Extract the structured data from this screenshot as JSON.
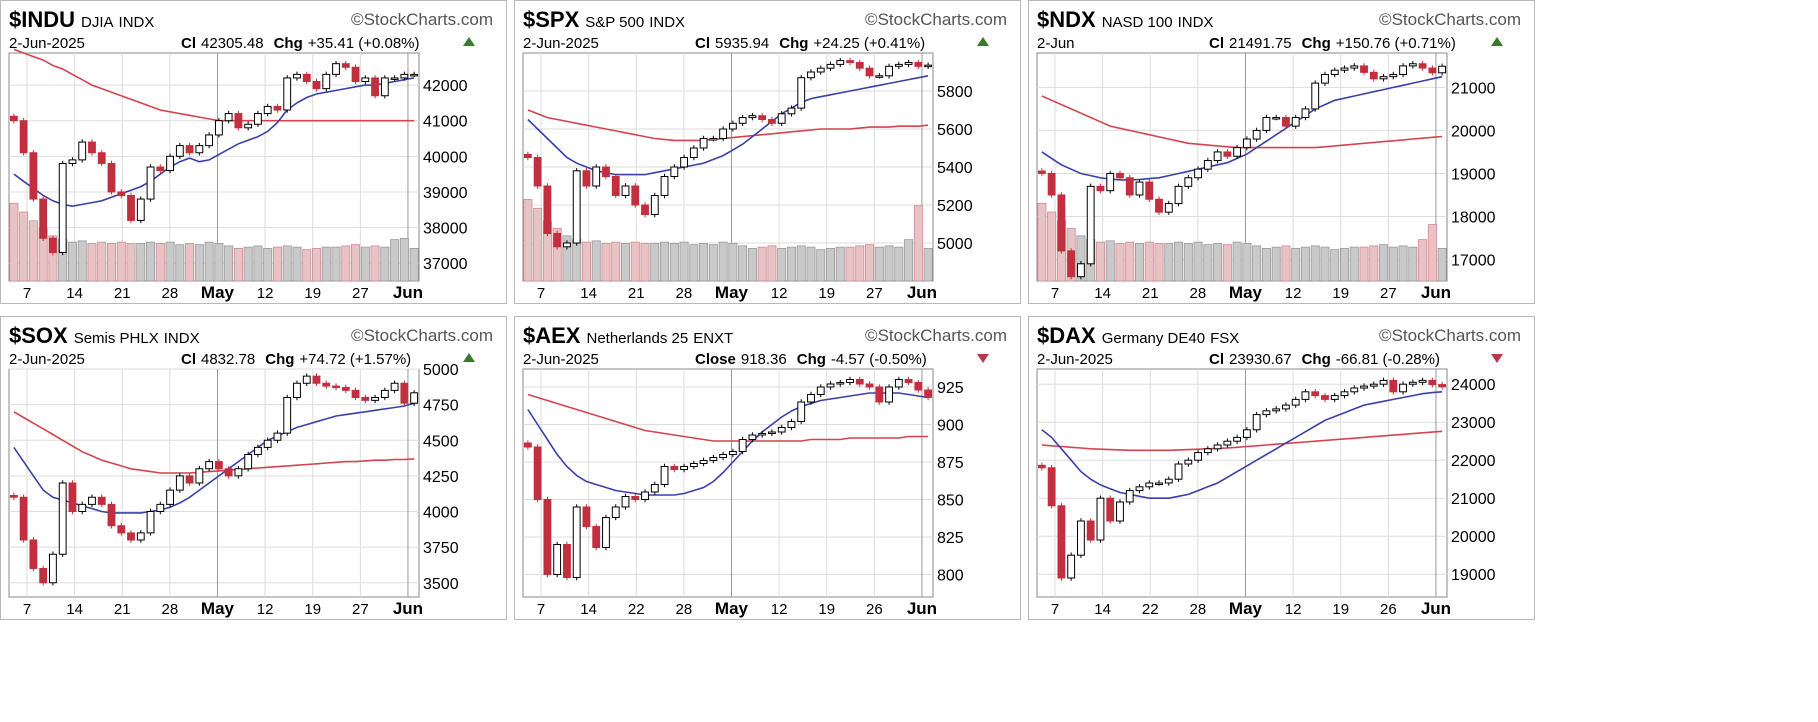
{
  "chart_data": [
    {
      "type": "candlestick",
      "symbol": "$INDU",
      "name": "DJIA",
      "exchange": "INDX",
      "brand": "StockCharts.com",
      "date": "2-Jun-2025",
      "close_label": "Cl",
      "close": "42305.48",
      "chg_label": "Chg",
      "chg": "+35.41 (+0.08%)",
      "direction": "up",
      "y_ticks": [
        "42000",
        "41000",
        "40000",
        "39000",
        "38000",
        "37000"
      ],
      "ylim": [
        36500,
        42900
      ],
      "x_labels": [
        "7",
        "14",
        "21",
        "28",
        "May",
        "12",
        "19",
        "27",
        "Jun"
      ],
      "closes": [
        41000,
        40100,
        38800,
        37700,
        37300,
        39800,
        39900,
        40400,
        40100,
        39800,
        39000,
        38900,
        38200,
        38800,
        39700,
        39600,
        40000,
        40300,
        40100,
        40300,
        40600,
        41000,
        41200,
        40800,
        40900,
        41200,
        41400,
        41300,
        42200,
        42300,
        42100,
        41900,
        42300,
        42600,
        42500,
        42100,
        42200,
        41700,
        42200,
        42200,
        42300,
        42300
      ],
      "ma_short": [
        39500,
        39300,
        39100,
        38900,
        38750,
        38650,
        38600,
        38650,
        38700,
        38750,
        38850,
        38950,
        39050,
        39150,
        39300,
        39500,
        39700,
        39850,
        39950,
        39850,
        39900,
        40050,
        40200,
        40350,
        40450,
        40550,
        40700,
        40950,
        41300,
        41500,
        41650,
        41750,
        41800,
        41850,
        41900,
        41950,
        42000,
        42000,
        42050,
        42100,
        42150,
        42200
      ],
      "ma_long": [
        43000,
        42900,
        42800,
        42700,
        42550,
        42450,
        42300,
        42150,
        42000,
        41900,
        41800,
        41700,
        41600,
        41500,
        41400,
        41300,
        41250,
        41200,
        41150,
        41100,
        41050,
        41000,
        41000,
        41000,
        41000,
        41000,
        41000,
        41000,
        41000,
        41000,
        41000,
        41000,
        41000,
        41000,
        41000,
        41000,
        41000,
        41000,
        41000,
        41000,
        41000,
        41000
      ],
      "volume": [
        0.62,
        0.55,
        0.48,
        0.42,
        0.36,
        0.33,
        0.31,
        0.32,
        0.3,
        0.31,
        0.3,
        0.31,
        0.3,
        0.3,
        0.31,
        0.3,
        0.31,
        0.29,
        0.3,
        0.29,
        0.31,
        0.3,
        0.28,
        0.26,
        0.27,
        0.28,
        0.26,
        0.27,
        0.28,
        0.27,
        0.25,
        0.26,
        0.27,
        0.27,
        0.28,
        0.29,
        0.27,
        0.28,
        0.27,
        0.33,
        0.34,
        0.26
      ]
    },
    {
      "type": "candlestick",
      "symbol": "$SPX",
      "name": "S&P 500",
      "exchange": "INDX",
      "brand": "StockCharts.com",
      "date": "2-Jun-2025",
      "close_label": "Cl",
      "close": "5935.94",
      "chg_label": "Chg",
      "chg": "+24.25 (+0.41%)",
      "direction": "up",
      "y_ticks": [
        "5800",
        "5600",
        "5400",
        "5200",
        "5000"
      ],
      "ylim": [
        4800,
        6000
      ],
      "x_labels": [
        "7",
        "14",
        "21",
        "28",
        "May",
        "12",
        "19",
        "27",
        "Jun"
      ],
      "closes": [
        5450,
        5300,
        5050,
        4980,
        5000,
        5380,
        5300,
        5400,
        5350,
        5250,
        5300,
        5200,
        5150,
        5250,
        5350,
        5400,
        5450,
        5500,
        5550,
        5550,
        5600,
        5630,
        5660,
        5670,
        5650,
        5630,
        5680,
        5710,
        5870,
        5900,
        5920,
        5940,
        5960,
        5950,
        5920,
        5880,
        5880,
        5930,
        5940,
        5950,
        5930,
        5936
      ],
      "ma_short": [
        5650,
        5600,
        5550,
        5500,
        5450,
        5420,
        5400,
        5380,
        5370,
        5360,
        5360,
        5360,
        5360,
        5370,
        5380,
        5390,
        5400,
        5410,
        5420,
        5440,
        5460,
        5490,
        5520,
        5560,
        5600,
        5640,
        5680,
        5710,
        5740,
        5760,
        5770,
        5780,
        5790,
        5800,
        5810,
        5820,
        5830,
        5840,
        5850,
        5860,
        5870,
        5880
      ],
      "ma_long": [
        5700,
        5680,
        5660,
        5650,
        5640,
        5630,
        5620,
        5610,
        5600,
        5590,
        5580,
        5570,
        5560,
        5550,
        5545,
        5540,
        5540,
        5540,
        5540,
        5545,
        5550,
        5555,
        5560,
        5565,
        5570,
        5575,
        5580,
        5585,
        5590,
        5595,
        5600,
        5600,
        5600,
        5600,
        5605,
        5610,
        5610,
        5610,
        5615,
        5615,
        5615,
        5620
      ],
      "volume": [
        0.65,
        0.58,
        0.48,
        0.42,
        0.36,
        0.33,
        0.31,
        0.32,
        0.3,
        0.31,
        0.3,
        0.31,
        0.3,
        0.3,
        0.31,
        0.3,
        0.31,
        0.29,
        0.3,
        0.29,
        0.31,
        0.3,
        0.28,
        0.26,
        0.27,
        0.28,
        0.26,
        0.27,
        0.28,
        0.27,
        0.25,
        0.26,
        0.27,
        0.27,
        0.28,
        0.29,
        0.27,
        0.28,
        0.27,
        0.33,
        0.6,
        0.26
      ]
    },
    {
      "type": "candlestick",
      "symbol": "$NDX",
      "name": "NASD 100",
      "exchange": "INDX",
      "brand": "StockCharts.com",
      "date": "2-Jun",
      "close_label": "Cl",
      "close": "21491.75",
      "chg_label": "Chg",
      "chg": "+150.76 (+0.71%)",
      "direction": "up",
      "y_ticks": [
        "21000",
        "20000",
        "19000",
        "18000",
        "17000"
      ],
      "ylim": [
        16500,
        21800
      ],
      "x_labels": [
        "7",
        "14",
        "21",
        "28",
        "May",
        "12",
        "19",
        "27",
        "Jun"
      ],
      "closes": [
        19000,
        18500,
        17200,
        16600,
        16900,
        18700,
        18600,
        19000,
        18900,
        18500,
        18800,
        18400,
        18100,
        18300,
        18700,
        18900,
        19100,
        19300,
        19500,
        19400,
        19600,
        19800,
        20000,
        20300,
        20300,
        20100,
        20300,
        20500,
        21100,
        21300,
        21400,
        21450,
        21500,
        21350,
        21200,
        21250,
        21300,
        21500,
        21550,
        21450,
        21340,
        21492
      ],
      "ma_short": [
        19500,
        19350,
        19200,
        19100,
        19000,
        18950,
        18900,
        18870,
        18850,
        18850,
        18860,
        18880,
        18900,
        18950,
        19000,
        19050,
        19100,
        19150,
        19200,
        19250,
        19350,
        19450,
        19600,
        19750,
        19900,
        20050,
        20200,
        20350,
        20500,
        20600,
        20700,
        20750,
        20800,
        20850,
        20900,
        20950,
        21000,
        21050,
        21100,
        21150,
        21200,
        21250
      ],
      "ma_long": [
        20800,
        20700,
        20600,
        20500,
        20400,
        20300,
        20200,
        20100,
        20050,
        20000,
        19950,
        19900,
        19850,
        19800,
        19750,
        19700,
        19680,
        19660,
        19640,
        19620,
        19600,
        19600,
        19600,
        19600,
        19600,
        19600,
        19600,
        19600,
        19600,
        19620,
        19640,
        19660,
        19680,
        19700,
        19720,
        19740,
        19760,
        19780,
        19800,
        19820,
        19840,
        19860
      ],
      "volume": [
        0.62,
        0.55,
        0.48,
        0.42,
        0.36,
        0.33,
        0.31,
        0.32,
        0.3,
        0.31,
        0.3,
        0.31,
        0.3,
        0.3,
        0.31,
        0.3,
        0.31,
        0.29,
        0.3,
        0.29,
        0.31,
        0.3,
        0.28,
        0.26,
        0.27,
        0.28,
        0.26,
        0.27,
        0.28,
        0.27,
        0.25,
        0.26,
        0.27,
        0.27,
        0.28,
        0.29,
        0.27,
        0.28,
        0.27,
        0.33,
        0.45,
        0.26
      ]
    },
    {
      "type": "candlestick",
      "symbol": "$SOX",
      "name": "Semis PHLX",
      "exchange": "INDX",
      "brand": "StockCharts.com",
      "date": "2-Jun-2025",
      "close_label": "Cl",
      "close": "4832.78",
      "chg_label": "Chg",
      "chg": "+74.72 (+1.57%)",
      "direction": "up",
      "y_ticks": [
        "5000",
        "4750",
        "4500",
        "4250",
        "4000",
        "3750",
        "3500"
      ],
      "ylim": [
        3400,
        5000
      ],
      "x_labels": [
        "7",
        "14",
        "21",
        "28",
        "May",
        "12",
        "19",
        "27",
        "Jun"
      ],
      "closes": [
        4100,
        3800,
        3600,
        3500,
        3700,
        4200,
        4000,
        4050,
        4100,
        4050,
        3900,
        3850,
        3800,
        3850,
        4000,
        4050,
        4150,
        4250,
        4200,
        4300,
        4350,
        4300,
        4250,
        4300,
        4400,
        4450,
        4500,
        4550,
        4800,
        4900,
        4950,
        4900,
        4880,
        4870,
        4850,
        4800,
        4780,
        4800,
        4850,
        4900,
        4760,
        4833
      ],
      "ma_short": [
        4450,
        4350,
        4250,
        4150,
        4100,
        4080,
        4060,
        4040,
        4020,
        4000,
        3990,
        3990,
        3990,
        3990,
        4000,
        4010,
        4030,
        4060,
        4100,
        4150,
        4200,
        4250,
        4300,
        4350,
        4400,
        4450,
        4500,
        4530,
        4560,
        4590,
        4610,
        4630,
        4650,
        4670,
        4680,
        4690,
        4700,
        4710,
        4720,
        4730,
        4740,
        4760
      ],
      "ma_long": [
        4700,
        4660,
        4620,
        4580,
        4540,
        4500,
        4460,
        4420,
        4390,
        4360,
        4340,
        4320,
        4300,
        4290,
        4280,
        4270,
        4270,
        4270,
        4270,
        4275,
        4280,
        4285,
        4290,
        4295,
        4300,
        4305,
        4310,
        4315,
        4320,
        4325,
        4330,
        4335,
        4340,
        4345,
        4350,
        4350,
        4355,
        4360,
        4360,
        4365,
        4365,
        4370
      ]
    },
    {
      "type": "candlestick",
      "symbol": "$AEX",
      "name": "Netherlands 25",
      "exchange": "ENXT",
      "brand": "StockCharts.com",
      "date": "2-Jun-2025",
      "close_label": "Close",
      "close": "918.36",
      "chg_label": "Chg",
      "chg": "-4.57 (-0.50%)",
      "direction": "down",
      "y_ticks": [
        "925",
        "900",
        "875",
        "850",
        "825",
        "800"
      ],
      "ylim": [
        785,
        937
      ],
      "x_labels": [
        "7",
        "14",
        "22",
        "28",
        "May",
        "12",
        "19",
        "26",
        "Jun"
      ],
      "closes": [
        885,
        850,
        800,
        820,
        798,
        845,
        832,
        818,
        838,
        845,
        852,
        850,
        855,
        860,
        872,
        870,
        872,
        874,
        876,
        878,
        880,
        882,
        890,
        893,
        894,
        895,
        898,
        902,
        915,
        920,
        925,
        927,
        928,
        930,
        927,
        925,
        915,
        925,
        930,
        928,
        923,
        918
      ],
      "ma_short": [
        910,
        900,
        890,
        880,
        872,
        866,
        862,
        860,
        858,
        856,
        855,
        854,
        853,
        853,
        853,
        853,
        854,
        856,
        858,
        862,
        868,
        875,
        882,
        889,
        895,
        900,
        905,
        909,
        912,
        914,
        916,
        917,
        918,
        919,
        920,
        921,
        921,
        921,
        921,
        920,
        919,
        918
      ],
      "ma_long": [
        920,
        918,
        916,
        914,
        912,
        910,
        908,
        906,
        904,
        902,
        900,
        898,
        896,
        895,
        894,
        893,
        892,
        891,
        890,
        889,
        889,
        889,
        889,
        889,
        889,
        889,
        889,
        889,
        889,
        890,
        890,
        890,
        890,
        891,
        891,
        891,
        891,
        891,
        891,
        892,
        892,
        892
      ]
    },
    {
      "type": "candlestick",
      "symbol": "$DAX",
      "name": "Germany DE40",
      "exchange": "FSX",
      "brand": "StockCharts.com",
      "date": "2-Jun-2025",
      "close_label": "Cl",
      "close": "23930.67",
      "chg_label": "Chg",
      "chg": "-66.81 (-0.28%)",
      "direction": "down",
      "y_ticks": [
        "24000",
        "23000",
        "22000",
        "21000",
        "20000",
        "19000"
      ],
      "ylim": [
        18400,
        24400
      ],
      "x_labels": [
        "7",
        "14",
        "22",
        "28",
        "May",
        "12",
        "19",
        "26",
        "Jun"
      ],
      "closes": [
        21800,
        20800,
        18900,
        19500,
        20400,
        19900,
        21000,
        20400,
        20900,
        21200,
        21300,
        21400,
        21400,
        21500,
        21900,
        22000,
        22200,
        22300,
        22400,
        22500,
        22600,
        22800,
        23200,
        23300,
        23350,
        23450,
        23600,
        23800,
        23700,
        23600,
        23700,
        23800,
        23900,
        23950,
        24000,
        24100,
        23800,
        24000,
        24050,
        24100,
        23990,
        23931
      ],
      "ma_short": [
        22800,
        22600,
        22300,
        22000,
        21700,
        21500,
        21350,
        21250,
        21150,
        21100,
        21050,
        21000,
        21000,
        21000,
        21050,
        21100,
        21200,
        21300,
        21400,
        21550,
        21700,
        21850,
        22000,
        22150,
        22300,
        22450,
        22600,
        22750,
        22900,
        23050,
        23150,
        23250,
        23350,
        23450,
        23500,
        23550,
        23600,
        23650,
        23700,
        23750,
        23780,
        23800
      ],
      "ma_long": [
        22400,
        22380,
        22360,
        22340,
        22320,
        22300,
        22290,
        22280,
        22270,
        22260,
        22260,
        22260,
        22260,
        22260,
        22270,
        22280,
        22290,
        22300,
        22310,
        22320,
        22340,
        22360,
        22380,
        22400,
        22420,
        22440,
        22460,
        22480,
        22500,
        22520,
        22540,
        22560,
        22580,
        22600,
        22620,
        22640,
        22660,
        22680,
        22700,
        22720,
        22740,
        22760
      ]
    }
  ]
}
